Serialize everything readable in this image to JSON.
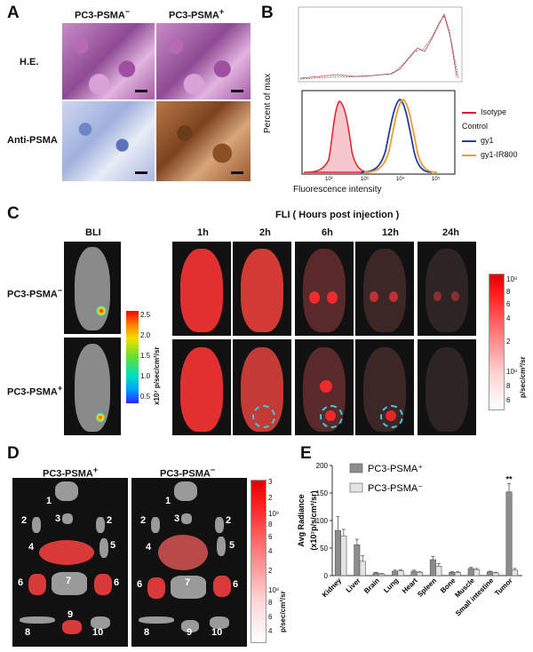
{
  "panelA": {
    "label": "A",
    "col_neg": "PC3-PSMA",
    "col_neg_sup": "−",
    "col_pos": "PC3-PSMA",
    "col_pos_sup": "+",
    "row1": "H.E.",
    "row2": "Anti-PSMA"
  },
  "panelB": {
    "label": "B",
    "ylabel": "Percent of max",
    "xlabel": "Fluorescence intensity",
    "legend": [
      {
        "name": "Isotype Control",
        "color": "#e0202a"
      },
      {
        "name": "gy1",
        "color": "#1f3fa0"
      },
      {
        "name": "gy1-IR800",
        "color": "#f39a2a"
      }
    ]
  },
  "panelC": {
    "label": "C",
    "bli": "BLI",
    "fli": "FLI ( Hours post injection )",
    "times": [
      "1h",
      "2h",
      "6h",
      "12h",
      "24h"
    ],
    "row1": "PC3-PSMA",
    "row1_sup": "−",
    "row2": "PC3-PSMA",
    "row2_sup": "+",
    "bli_ticks": [
      "2.5",
      "2.0",
      "1.5",
      "1.0",
      "0.5"
    ],
    "bli_unit": "x10⁷ p/sec/cm²/sr",
    "fli_ticks": [
      "10⁹",
      "8",
      "6",
      "4",
      "2",
      "10⁸",
      "8",
      "6"
    ],
    "fli_unit": "p/sec/cm²/sr"
  },
  "panelD": {
    "label": "D",
    "col1": "PC3-PSMA",
    "col1_sup": "+",
    "col2": "PC3-PSMA",
    "col2_sup": "−",
    "ticks": [
      "3",
      "2",
      "10⁹",
      "8",
      "6",
      "4",
      "2",
      "10⁸",
      "8",
      "6",
      "4"
    ],
    "unit": "p/sec/cm²/sr",
    "organ_numbers": [
      "1",
      "2",
      "3",
      "2",
      "4",
      "5",
      "6",
      "7",
      "6",
      "8",
      "9",
      "10"
    ]
  },
  "panelE": {
    "label": "E"
  },
  "chart_data": {
    "type": "bar",
    "ylabel": "Avg Radiance (x10⁷p/s/cm²/sr)",
    "ylim": [
      0,
      200
    ],
    "yticks": [
      0,
      50,
      100,
      150,
      200
    ],
    "categories": [
      "Kidney",
      "Liver",
      "Brain",
      "Lung",
      "Heart",
      "Spleen",
      "Bone",
      "Muscle",
      "Small intestine",
      "Tumor"
    ],
    "series": [
      {
        "name": "PC3-PSMA⁺",
        "color": "#8c8c8c",
        "values": [
          82,
          56,
          5,
          8,
          8,
          29,
          6,
          13,
          7,
          152
        ],
        "errors": [
          25,
          10,
          1,
          2,
          2,
          6,
          1,
          2,
          1,
          15
        ]
      },
      {
        "name": "PC3-PSMA⁻",
        "color": "#e4e4e4",
        "values": [
          72,
          26,
          3,
          9,
          6,
          17,
          6,
          11,
          5,
          10
        ],
        "errors": [
          12,
          10,
          1,
          2,
          1,
          5,
          1,
          2,
          1,
          3
        ]
      }
    ],
    "annotation": "**"
  }
}
